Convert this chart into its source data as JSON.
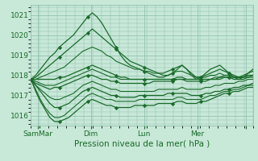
{
  "bg_color": "#c8e8d8",
  "grid_color": "#88bbaa",
  "line_color": "#1a6b2a",
  "marker_color": "#1a6b2a",
  "xlabel_text": "Pression niveau de la mer( hPa )",
  "ylim": [
    1015.5,
    1021.5
  ],
  "yticks": [
    1016,
    1017,
    1018,
    1019,
    1020,
    1021
  ],
  "xlim": [
    0,
    100
  ],
  "xtick_positions": [
    3,
    27,
    51,
    75,
    97
  ],
  "xtick_labels": [
    "SamMar",
    "Dim",
    "Lun",
    "Mer",
    ""
  ],
  "series": [
    [
      1017.8,
      1018.0,
      1018.3,
      1018.6,
      1018.9,
      1019.1,
      1019.4,
      1019.6,
      1019.8,
      1020.0,
      1020.3,
      1020.6,
      1020.9,
      1021.1,
      1020.9,
      1020.6,
      1020.2,
      1019.8,
      1019.4,
      1019.0,
      1018.7,
      1018.5,
      1018.4,
      1018.3,
      1018.2,
      1018.1,
      1018.0,
      1017.9,
      1017.9,
      1018.0,
      1018.1,
      1018.3,
      1018.5,
      1018.3,
      1018.0,
      1017.8,
      1017.9,
      1018.1,
      1018.3,
      1018.4,
      1018.5,
      1018.3,
      1018.1,
      1017.9,
      1017.8,
      1017.9,
      1018.1,
      1018.3
    ],
    [
      1017.8,
      1017.9,
      1018.1,
      1018.3,
      1018.5,
      1018.7,
      1018.9,
      1019.1,
      1019.3,
      1019.5,
      1019.7,
      1019.9,
      1020.1,
      1020.3,
      1020.1,
      1019.9,
      1019.7,
      1019.5,
      1019.3,
      1019.1,
      1018.9,
      1018.7,
      1018.6,
      1018.5,
      1018.4,
      1018.3,
      1018.2,
      1018.1,
      1018.1,
      1018.2,
      1018.3,
      1018.4,
      1018.5,
      1018.3,
      1018.1,
      1017.9,
      1017.9,
      1018.0,
      1018.1,
      1018.2,
      1018.3,
      1018.2,
      1018.1,
      1018.0,
      1017.9,
      1018.0,
      1018.1,
      1018.2
    ],
    [
      1017.8,
      1017.8,
      1017.9,
      1018.0,
      1018.1,
      1018.2,
      1018.3,
      1018.4,
      1018.6,
      1018.8,
      1019.0,
      1019.2,
      1019.3,
      1019.4,
      1019.3,
      1019.2,
      1019.0,
      1018.9,
      1018.7,
      1018.6,
      1018.5,
      1018.4,
      1018.3,
      1018.3,
      1018.2,
      1018.2,
      1018.1,
      1018.1,
      1018.0,
      1018.0,
      1018.1,
      1018.2,
      1018.2,
      1018.1,
      1018.0,
      1017.9,
      1017.9,
      1017.9,
      1018.0,
      1018.0,
      1018.1,
      1018.0,
      1018.0,
      1017.9,
      1017.9,
      1017.9,
      1018.0,
      1018.0
    ],
    [
      1017.8,
      1017.8,
      1017.8,
      1017.8,
      1017.8,
      1017.8,
      1017.9,
      1017.9,
      1018.0,
      1018.1,
      1018.2,
      1018.3,
      1018.4,
      1018.5,
      1018.4,
      1018.3,
      1018.2,
      1018.1,
      1018.0,
      1017.9,
      1017.9,
      1017.8,
      1017.8,
      1017.8,
      1017.8,
      1017.8,
      1017.8,
      1017.8,
      1017.8,
      1017.8,
      1017.8,
      1017.9,
      1017.9,
      1017.8,
      1017.8,
      1017.8,
      1017.8,
      1017.8,
      1017.8,
      1017.8,
      1017.9,
      1017.9,
      1017.9,
      1017.8,
      1017.8,
      1017.8,
      1017.9,
      1017.9
    ],
    [
      1017.8,
      1017.7,
      1017.6,
      1017.5,
      1017.5,
      1017.5,
      1017.6,
      1017.7,
      1017.8,
      1017.9,
      1018.0,
      1018.1,
      1018.2,
      1018.3,
      1018.2,
      1018.1,
      1018.0,
      1017.9,
      1017.9,
      1017.8,
      1017.8,
      1017.8,
      1017.8,
      1017.8,
      1017.8,
      1017.8,
      1017.8,
      1017.8,
      1017.8,
      1017.8,
      1017.8,
      1017.8,
      1017.8,
      1017.8,
      1017.8,
      1017.8,
      1017.8,
      1017.8,
      1017.8,
      1017.9,
      1017.9,
      1018.0,
      1018.0,
      1017.9,
      1017.9,
      1017.9,
      1017.9,
      1018.0
    ],
    [
      1017.8,
      1017.6,
      1017.5,
      1017.4,
      1017.3,
      1017.4,
      1017.4,
      1017.5,
      1017.6,
      1017.7,
      1017.8,
      1017.9,
      1018.0,
      1018.0,
      1017.9,
      1017.8,
      1017.8,
      1017.7,
      1017.7,
      1017.6,
      1017.6,
      1017.6,
      1017.6,
      1017.6,
      1017.6,
      1017.6,
      1017.7,
      1017.7,
      1017.7,
      1017.7,
      1017.7,
      1017.8,
      1017.8,
      1017.7,
      1017.7,
      1017.7,
      1017.7,
      1017.7,
      1017.8,
      1017.8,
      1017.8,
      1017.9,
      1017.9,
      1017.9,
      1017.9,
      1017.9,
      1018.0,
      1018.0
    ],
    [
      1017.8,
      1017.5,
      1017.3,
      1017.1,
      1016.9,
      1016.8,
      1016.8,
      1016.9,
      1017.0,
      1017.1,
      1017.3,
      1017.5,
      1017.6,
      1017.7,
      1017.6,
      1017.5,
      1017.4,
      1017.3,
      1017.3,
      1017.2,
      1017.2,
      1017.2,
      1017.2,
      1017.2,
      1017.2,
      1017.2,
      1017.2,
      1017.3,
      1017.3,
      1017.3,
      1017.3,
      1017.3,
      1017.4,
      1017.3,
      1017.3,
      1017.3,
      1017.3,
      1017.4,
      1017.4,
      1017.5,
      1017.5,
      1017.6,
      1017.6,
      1017.6,
      1017.7,
      1017.7,
      1017.8,
      1017.8
    ],
    [
      1017.8,
      1017.5,
      1017.2,
      1016.9,
      1016.6,
      1016.4,
      1016.4,
      1016.5,
      1016.6,
      1016.8,
      1017.0,
      1017.2,
      1017.3,
      1017.4,
      1017.3,
      1017.2,
      1017.1,
      1017.0,
      1017.0,
      1016.9,
      1016.9,
      1016.9,
      1016.9,
      1017.0,
      1017.0,
      1017.0,
      1017.0,
      1017.0,
      1017.0,
      1017.1,
      1017.1,
      1017.1,
      1017.1,
      1017.1,
      1017.0,
      1017.0,
      1017.0,
      1017.1,
      1017.1,
      1017.2,
      1017.2,
      1017.3,
      1017.3,
      1017.4,
      1017.4,
      1017.5,
      1017.5,
      1017.6
    ],
    [
      1017.8,
      1017.3,
      1016.8,
      1016.4,
      1016.1,
      1015.9,
      1015.9,
      1016.0,
      1016.2,
      1016.4,
      1016.6,
      1016.8,
      1017.0,
      1017.1,
      1017.0,
      1016.9,
      1016.8,
      1016.8,
      1016.7,
      1016.7,
      1016.7,
      1016.7,
      1016.7,
      1016.8,
      1016.8,
      1016.8,
      1016.8,
      1016.8,
      1016.8,
      1016.8,
      1016.8,
      1016.9,
      1016.9,
      1016.8,
      1016.8,
      1016.8,
      1016.8,
      1016.9,
      1017.0,
      1017.0,
      1017.1,
      1017.2,
      1017.2,
      1017.3,
      1017.3,
      1017.4,
      1017.5,
      1017.5
    ],
    [
      1017.8,
      1017.2,
      1016.7,
      1016.3,
      1015.9,
      1015.7,
      1015.7,
      1015.8,
      1015.9,
      1016.1,
      1016.3,
      1016.5,
      1016.7,
      1016.8,
      1016.7,
      1016.6,
      1016.5,
      1016.5,
      1016.4,
      1016.4,
      1016.4,
      1016.4,
      1016.5,
      1016.5,
      1016.5,
      1016.5,
      1016.5,
      1016.6,
      1016.6,
      1016.6,
      1016.6,
      1016.7,
      1016.7,
      1016.6,
      1016.6,
      1016.6,
      1016.7,
      1016.7,
      1016.8,
      1016.9,
      1017.0,
      1017.1,
      1017.1,
      1017.2,
      1017.2,
      1017.3,
      1017.4,
      1017.4
    ]
  ],
  "n_points": 48,
  "marker_every": 6,
  "marker_series": [
    0,
    1,
    3,
    5,
    7,
    9
  ]
}
